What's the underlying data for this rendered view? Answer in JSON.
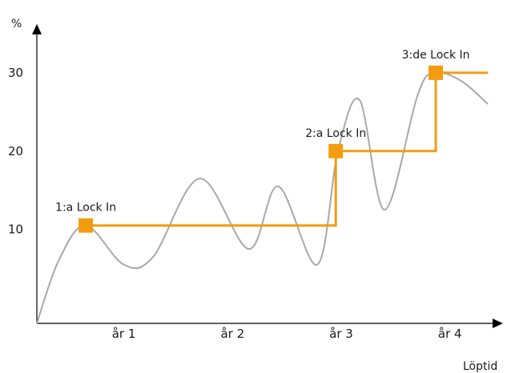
{
  "chart_data": {
    "type": "line",
    "title": "",
    "xlabel": "Löptid",
    "ylabel": "%",
    "xlim": [
      0,
      4.2
    ],
    "ylim": [
      -2,
      35
    ],
    "x_ticks": [
      {
        "value": 0.8,
        "label": "år 1"
      },
      {
        "value": 1.8,
        "label": "år 2"
      },
      {
        "value": 2.8,
        "label": "år 3"
      },
      {
        "value": 3.8,
        "label": "år 4"
      }
    ],
    "y_ticks": [
      {
        "value": 10,
        "label": "10"
      },
      {
        "value": 20,
        "label": "20"
      },
      {
        "value": 30,
        "label": "30"
      }
    ],
    "grid": false,
    "series": [
      {
        "color": "#a8a8a8",
        "style": "smooth",
        "x": [
          0.0,
          0.2,
          0.45,
          0.8,
          1.07,
          1.5,
          1.95,
          2.22,
          2.58,
          2.77,
          2.97,
          3.2,
          3.5,
          3.65,
          3.9,
          4.15
        ],
        "y": [
          -2.0,
          6.0,
          10.5,
          5.5,
          6.5,
          16.5,
          7.5,
          15.5,
          5.5,
          20.0,
          26.5,
          12.5,
          27.0,
          30.0,
          29.0,
          26.0
        ]
      },
      {
        "color": "#f39c12",
        "style": "step",
        "x": [
          0.45,
          2.75,
          2.75,
          3.67,
          3.67,
          4.15
        ],
        "y": [
          10.5,
          10.5,
          20.0,
          20.0,
          30.0,
          30.0
        ]
      }
    ],
    "annotations": [
      {
        "text": "1:a Lock In",
        "x": 0.45,
        "y": 10.5
      },
      {
        "text": "2:a Lock In",
        "x": 2.75,
        "y": 20.0
      },
      {
        "text": "3:de Lock In",
        "x": 3.67,
        "y": 30.0
      }
    ]
  }
}
